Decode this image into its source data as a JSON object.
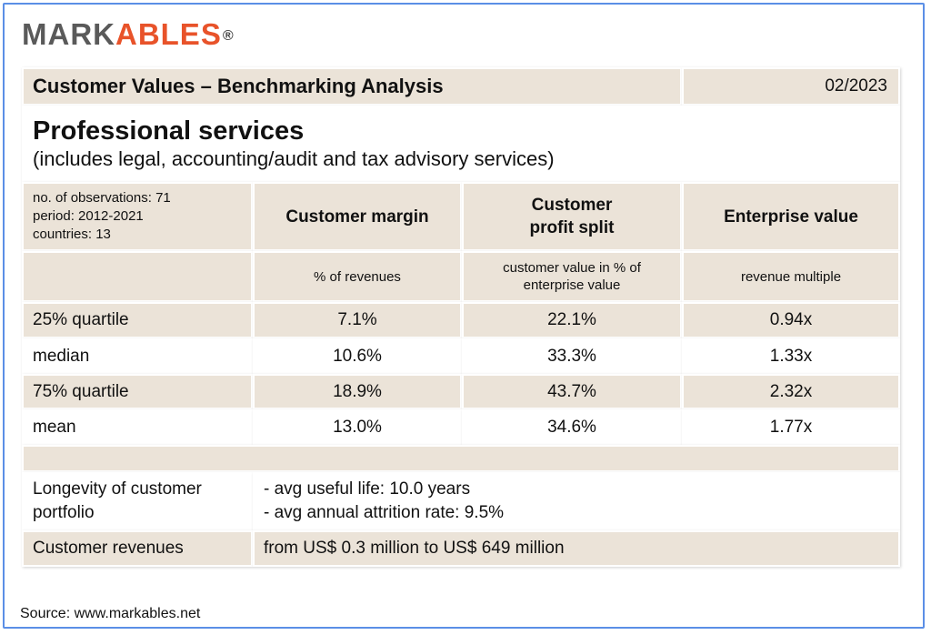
{
  "logo": {
    "part1": "MARK",
    "part2": "ABLES",
    "reg": "®"
  },
  "header": {
    "title": "Customer Values – Benchmarking Analysis",
    "date": "02/2023"
  },
  "sector": {
    "title": "Professional services",
    "subtitle": "(includes legal, accounting/audit and tax advisory services)"
  },
  "meta": {
    "observations": "no. of observations: 71",
    "period": "period: 2012-2021",
    "countries": "countries: 13"
  },
  "columns": [
    {
      "title": "Customer margin",
      "unit": "% of revenues"
    },
    {
      "title_line1": "Customer",
      "title_line2": "profit split",
      "unit_line1": "customer value in % of",
      "unit_line2": "enterprise value"
    },
    {
      "title": "Enterprise value",
      "unit": "revenue multiple"
    }
  ],
  "rows": [
    {
      "label": "25% quartile",
      "values": [
        "7.1%",
        "22.1%",
        "0.94x"
      ]
    },
    {
      "label": "median",
      "values": [
        "10.6%",
        "33.3%",
        "1.33x"
      ]
    },
    {
      "label": "75% quartile",
      "values": [
        "18.9%",
        "43.7%",
        "2.32x"
      ]
    },
    {
      "label": "mean",
      "values": [
        "13.0%",
        "34.6%",
        "1.77x"
      ]
    }
  ],
  "longevity": {
    "label_line1": "Longevity of customer",
    "label_line2": "portfolio",
    "line1": "- avg useful life: 10.0 years",
    "line2": "- avg annual attrition rate: 9.5%"
  },
  "revenues": {
    "label": "Customer revenues",
    "value": "from US$ 0.3 million to US$ 649 million"
  },
  "source": "Source: www.markables.net",
  "colors": {
    "frame": "#5b8fe6",
    "tan": "#ebe3d8",
    "logo_grey": "#5a5a5a",
    "logo_orange": "#e8532a"
  }
}
